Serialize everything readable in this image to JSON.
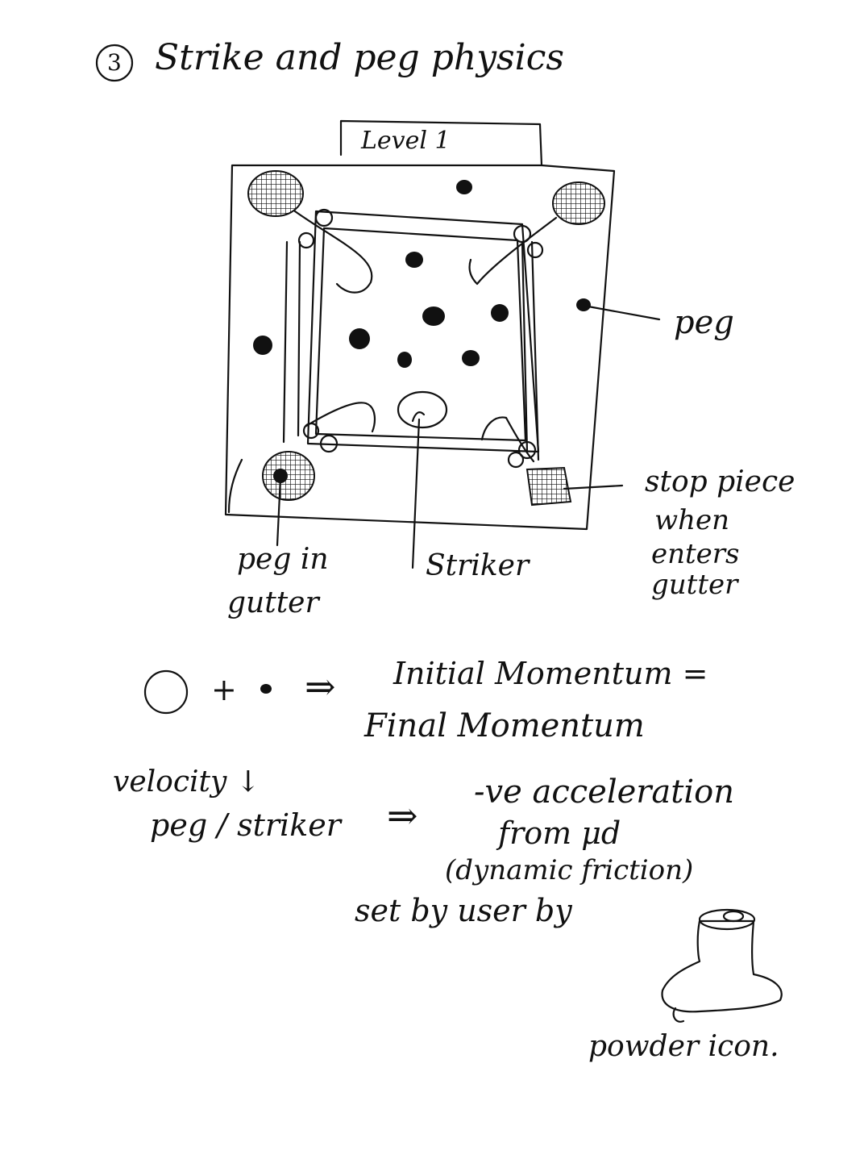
{
  "header": {
    "number": "3",
    "title": "Strike and peg physics"
  },
  "board": {
    "level_tab": "Level 1"
  },
  "callouts": {
    "peg": "peg",
    "stop_piece": [
      "stop piece",
      "when",
      "enters",
      "gutter"
    ],
    "peg_in_gutter": [
      "peg in",
      "gutter"
    ],
    "striker": "Striker"
  },
  "momentum": {
    "plus": "+",
    "arrow": "⇒",
    "line1": "Initial Momentum =",
    "line2": "Final Momentum"
  },
  "friction": {
    "left1": "velocity ↓",
    "left2": "peg / striker",
    "arrow": "⇒",
    "right1": "-ve acceleration",
    "right2": "from μd",
    "right3": "(dynamic friction)",
    "set_by": "set by user by",
    "icon_caption": "powder icon."
  }
}
